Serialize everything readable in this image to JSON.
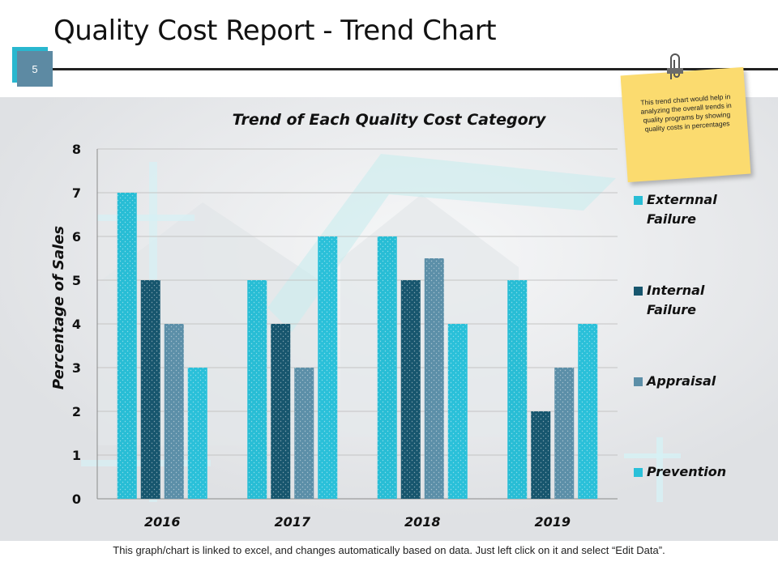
{
  "slide": {
    "title": "Quality Cost Report - Trend Chart",
    "number": "5",
    "note": "This trend chart would help in analyzing the overall trends in quality programs by showing quality costs in percentages",
    "footer": "This graph/chart is linked to excel, and changes automatically based on data. Just left click on it and select “Edit Data”."
  },
  "colors": {
    "accent": "#29b7cf",
    "badge": "#5d8aa3",
    "note": "#fbdb6f"
  },
  "chart_data": {
    "type": "bar",
    "title": "Trend of Each Quality Cost Category",
    "xlabel": "",
    "ylabel": "Percentage of Sales",
    "ylim": [
      0,
      8
    ],
    "yticks": [
      0,
      1,
      2,
      3,
      4,
      5,
      6,
      7,
      8
    ],
    "grid": true,
    "legend_position": "right",
    "categories": [
      "2016",
      "2017",
      "2018",
      "2019"
    ],
    "series": [
      {
        "name": "Externnal Failure",
        "legend_lines": [
          "Externnal",
          "Failure"
        ],
        "color": "#28bdd5",
        "values": [
          7,
          5,
          6,
          5
        ]
      },
      {
        "name": "Internal Failure",
        "legend_lines": [
          "Internal",
          "Failure"
        ],
        "color": "#17566e",
        "values": [
          5,
          4,
          5,
          2
        ]
      },
      {
        "name": "Appraisal",
        "legend_lines": [
          "Appraisal"
        ],
        "color": "#5c8fa8",
        "values": [
          4,
          3,
          5.5,
          3
        ]
      },
      {
        "name": "Prevention",
        "legend_lines": [
          "Prevention"
        ],
        "color": "#2ac0d9",
        "values": [
          3,
          6,
          4,
          4
        ]
      }
    ]
  }
}
